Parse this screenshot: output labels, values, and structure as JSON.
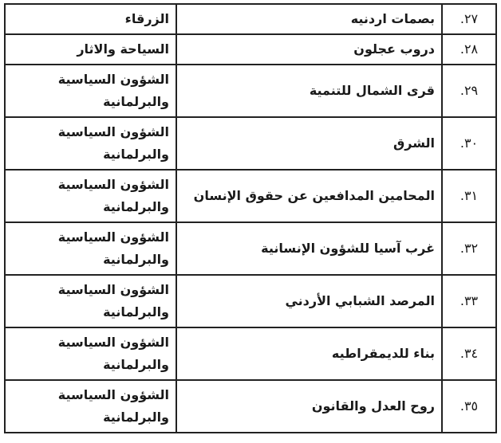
{
  "rows": [
    {
      "number": "٢٧.",
      "name": "بصمات اردنيه",
      "field": "الزرقاء"
    },
    {
      "number": "٢٨.",
      "name": "دروب عجلون",
      "field": "السياحة والاثار"
    },
    {
      "number": "٢٩.",
      "name": "قرى الشمال للتنمية",
      "field": "الشؤون السياسية والبرلمانية"
    },
    {
      "number": "٣٠.",
      "name": "الشرق",
      "field": "الشؤون السياسية والبرلمانية"
    },
    {
      "number": "٣١.",
      "name": "المحامين المدافعين عن حقوق الإنسان",
      "field": "الشؤون السياسية والبرلمانية"
    },
    {
      "number": "٣٢.",
      "name": "غرب آسيا للشؤون الإنسانية",
      "field": "الشؤون السياسية والبرلمانية"
    },
    {
      "number": "٣٣.",
      "name": "المرصد الشبابي الأردني",
      "field": "الشؤون السياسية والبرلمانية"
    },
    {
      "number": "٣٤.",
      "name": "بناء للديمقراطيه",
      "field": "الشؤون السياسية والبرلمانية"
    },
    {
      "number": "٣٥.",
      "name": "روح العدل والقانون",
      "field": "الشؤون السياسية والبرلمانية"
    }
  ]
}
